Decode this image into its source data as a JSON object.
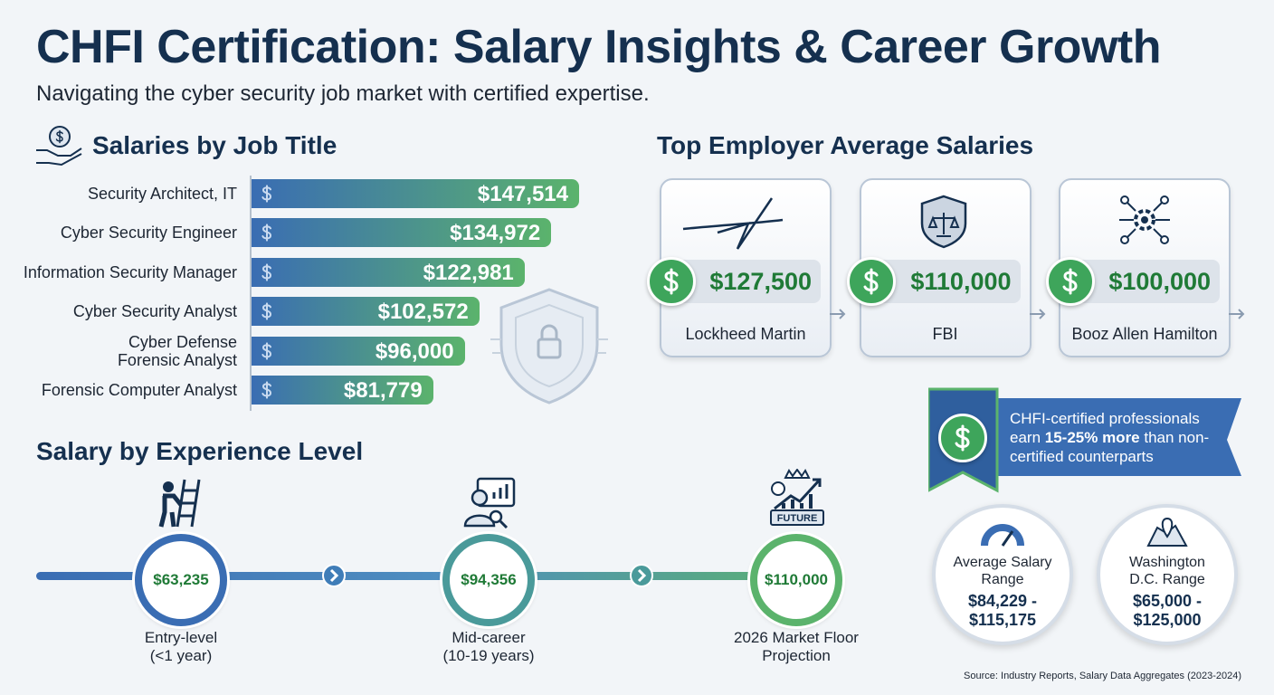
{
  "header": {
    "title": "CHFI Certification: Salary Insights & Career Growth",
    "subtitle": "Navigating the cyber security job market with certified expertise."
  },
  "chart_data": {
    "type": "bar",
    "orientation": "horizontal",
    "title": "Salaries by Job Title",
    "categories": [
      "Security Architect, IT",
      "Cyber Security Engineer",
      "Information Security Manager",
      "Cyber Security Analyst",
      "Cyber Defense Forensic Analyst",
      "Forensic Computer Analyst"
    ],
    "values": [
      147514,
      134972,
      122981,
      102572,
      96000,
      81779
    ],
    "value_labels": [
      "$147,514",
      "$134,972",
      "$122,981",
      "$102,572",
      "$96,000",
      "$81,779"
    ],
    "colors": [
      "#3a6db3",
      "#5bb36c"
    ]
  },
  "employers": {
    "title": "Top Employer Average Salaries",
    "items": [
      {
        "salary": "$127,500",
        "name": "Lockheed Martin"
      },
      {
        "salary": "$110,000",
        "name": "FBI"
      },
      {
        "salary": "$100,000",
        "name": "Booz Allen Hamilton"
      }
    ]
  },
  "experience": {
    "title": "Salary by Experience Level",
    "levels": [
      {
        "salary": "$63,235",
        "label": "Entry-level",
        "sublabel": "(<1 year)"
      },
      {
        "salary": "$94,356",
        "label": "Mid-career",
        "sublabel": "(10-19 years)"
      },
      {
        "salary": "$110,000",
        "label": "2026 Market Floor",
        "sublabel": "Projection"
      }
    ],
    "future_badge": "FUTURE"
  },
  "callout": {
    "before": "CHFI-certified professionals earn ",
    "highlight": "15-25% more",
    "after": " than non-certified counterparts"
  },
  "stats": [
    {
      "label": "Average Salary Range",
      "value": "$84,229 - $115,175"
    },
    {
      "label": "Washington D.C. Range",
      "value": "$65,000 - $125,000"
    }
  ],
  "source": "Source: Industry Reports, Salary Data Aggregates (2023-2024)"
}
